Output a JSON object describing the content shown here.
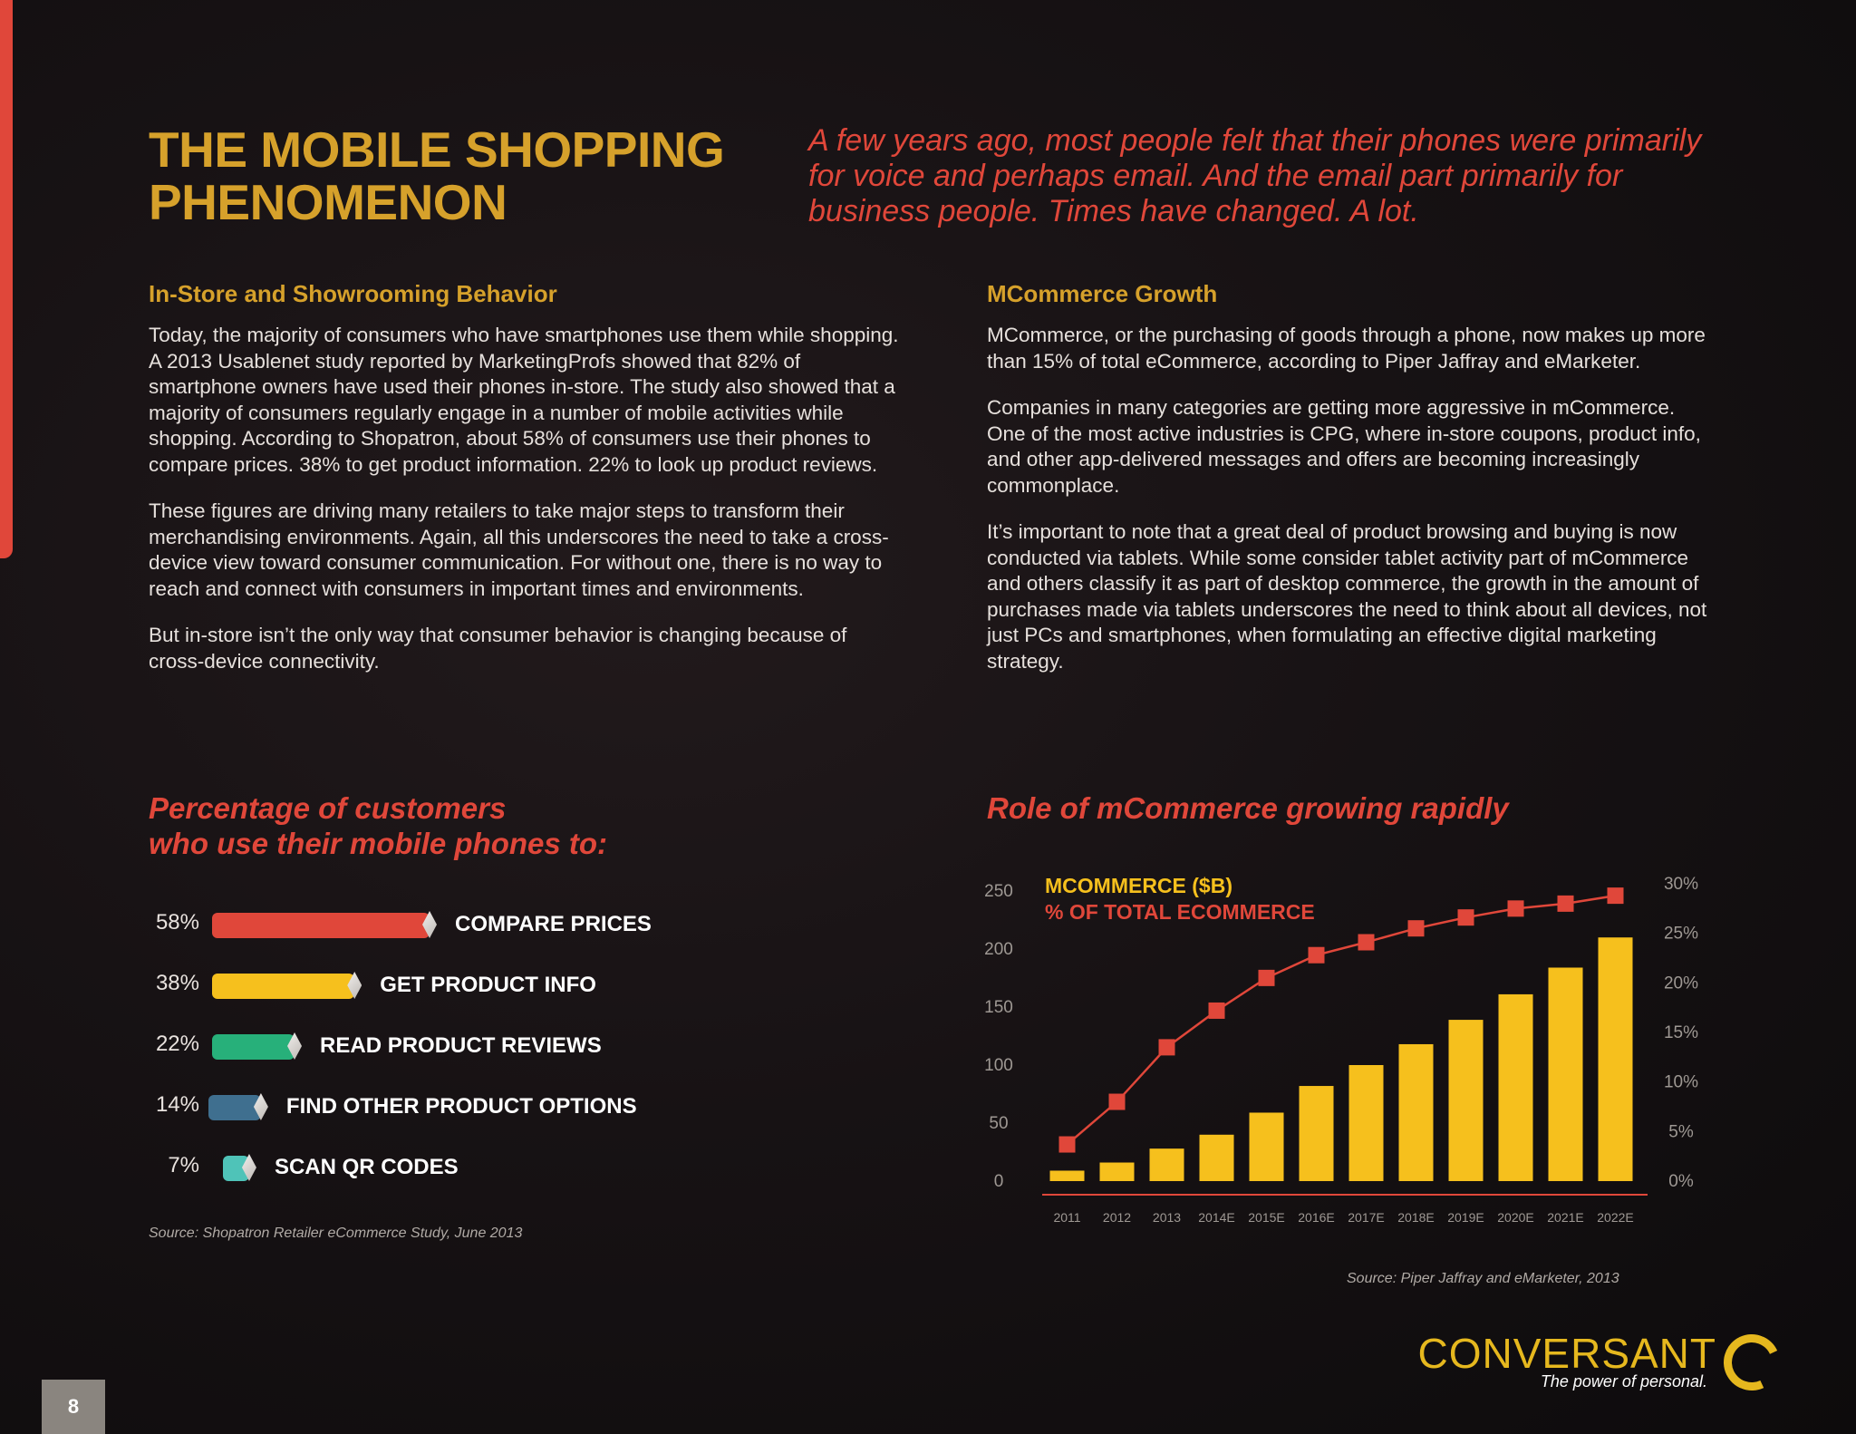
{
  "page": {
    "number": "8"
  },
  "header": {
    "title_line1": "THE MOBILE SHOPPING",
    "title_line2": "PHENOMENON",
    "intro": "A few years ago, most people felt that their phones were primarily for voice and perhaps email. And the email part primarily for business people. Times have changed. A lot."
  },
  "left_column": {
    "subhead": "In-Store and Showrooming Behavior",
    "paragraphs": [
      "Today, the majority of consumers who have smartphones use them while shopping. A 2013 Usablenet study reported by MarketingProfs showed that 82% of smartphone owners have used their phones in-store. The study also showed that a majority of consumers regularly engage in a number of mobile activities while shopping. According to Shopatron, about 58% of consumers use their phones to compare prices. 38% to get product information. 22% to look up product reviews.",
      "These figures are driving many retailers to take major steps to transform their merchandising environments. Again, all this underscores the need to take a cross-device view toward consumer communication. For without one, there is no way to reach and connect with consumers in important times and environments.",
      "But in-store isn’t the only way that consumer behavior is changing because of cross-device connectivity."
    ]
  },
  "right_column": {
    "subhead": "MCommerce Growth",
    "paragraphs": [
      "MCommerce, or the purchasing of goods through a phone, now makes up more than 15% of total eCommerce, according to Piper Jaffray and eMarketer.",
      "Companies in many categories are getting more aggressive in mCommerce. One of the most active industries is CPG, where in-store coupons, product info, and other app-delivered messages and offers are becoming increasingly commonplace.",
      "It’s important to note that a great deal of product browsing and buying is now conducted via tablets. While some consider tablet activity part of mCommerce and others classify it as part of desktop commerce, the growth in the amount of purchases made via tablets underscores the need to think about all devices, not just PCs and smartphones, when formulating an effective digital marketing strategy."
    ]
  },
  "left_chart": {
    "title_line1": "Percentage of customers",
    "title_line2": "who use their mobile phones to:",
    "source": "Source: Shopatron Retailer eCommerce Study, June 2013"
  },
  "right_chart": {
    "title": "Role of mCommerce growing rapidly",
    "source": "Source: Piper Jaffray and eMarketer, 2013"
  },
  "chart_data": [
    {
      "type": "bar",
      "orientation": "horizontal",
      "categories": [
        "COMPARE PRICES",
        "GET PRODUCT INFO",
        "READ PRODUCT REVIEWS",
        "FIND OTHER PRODUCT OPTIONS",
        "SCAN QR CODES"
      ],
      "values": [
        58,
        38,
        22,
        14,
        7
      ],
      "value_labels": [
        "58%",
        "38%",
        "22%",
        "14%",
        "7%"
      ],
      "colors": [
        "#e0473a",
        "#f6c01d",
        "#27b07a",
        "#3f6f8f",
        "#4fc3b8"
      ],
      "title": "Percentage of customers who use their mobile phones to:",
      "unit": "%"
    },
    {
      "type": "bar",
      "categories": [
        "2011",
        "2012",
        "2013",
        "2014E",
        "2015E",
        "2016E",
        "2017E",
        "2018E",
        "2019E",
        "2020E",
        "2021E",
        "2022E"
      ],
      "series": [
        {
          "name": "MCOMMERCE ($B)",
          "type": "bar",
          "axis": "left",
          "color": "#f6c01d",
          "values": [
            9,
            16,
            28,
            40,
            59,
            82,
            100,
            118,
            139,
            161,
            184,
            210
          ]
        },
        {
          "name": "% OF TOTAL ECOMMERCE",
          "type": "line",
          "axis": "right",
          "color": "#e0473a",
          "values": [
            3.7,
            8.0,
            13.5,
            17.2,
            20.5,
            22.8,
            24.1,
            25.5,
            26.6,
            27.5,
            28.0,
            28.8
          ]
        }
      ],
      "y_left": {
        "ticks": [
          "250",
          "200",
          "150",
          "100",
          "50",
          "0"
        ],
        "lim": [
          0,
          250
        ]
      },
      "y_right": {
        "ticks": [
          "30%",
          "25%",
          "20%",
          "15%",
          "10%",
          "5%",
          "0%"
        ],
        "lim": [
          0,
          30
        ]
      },
      "grid": false,
      "legend": "top-left"
    }
  ],
  "brand": {
    "name": "CONVERSANT",
    "tagline": "The power of personal.",
    "accent": "#e0473a",
    "gold": "#d6a12b"
  }
}
